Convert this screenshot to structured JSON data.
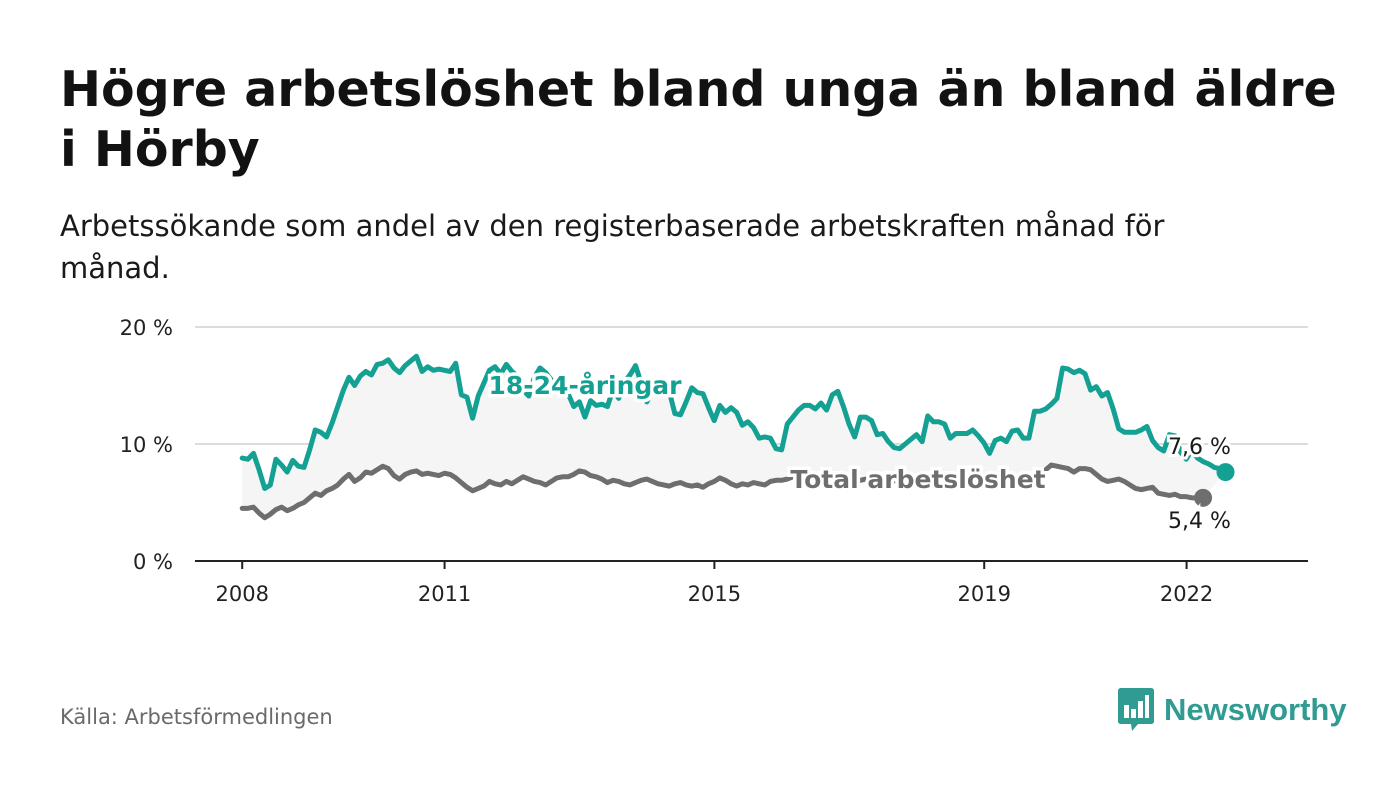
{
  "header": {
    "title": "Högre arbetslöshet bland unga än bland äldre i Hörby",
    "subtitle": "Arbetssökande som andel av den registerbaserade arbetskraften månad för månad."
  },
  "footer": {
    "source": "Källa: Arbetsförmedlingen",
    "brand": "Newsworthy"
  },
  "colors": {
    "youth": "#14a093",
    "total": "#6e6e6e",
    "band": "#f5f5f5",
    "grid": "#dcdcdc",
    "axis": "#222222",
    "brand": "#2f9b91"
  },
  "chart_data": {
    "type": "line",
    "title": "Högre arbetslöshet bland unga än bland äldre i Hörby",
    "xlabel": "",
    "ylabel": "",
    "xlim": [
      2007.3,
      2023.8
    ],
    "ylim": [
      0,
      20
    ],
    "x_ticks": [
      2008,
      2011,
      2015,
      2019,
      2022
    ],
    "y_ticks": [
      0,
      10,
      20
    ],
    "y_tick_labels": [
      "0 %",
      "10 %",
      "20 %"
    ],
    "grid": true,
    "series": [
      {
        "name": "18-24-åringar",
        "label": "18-24-åringar",
        "end_label": "7,6 %",
        "x_start": 2008.0,
        "x_step": 0.0833,
        "values": [
          8.8,
          8.7,
          9.2,
          7.8,
          6.2,
          6.5,
          8.7,
          8.2,
          7.6,
          8.6,
          8.1,
          8.0,
          9.5,
          11.2,
          11.0,
          10.6,
          11.8,
          13.2,
          14.6,
          15.7,
          15.0,
          15.8,
          16.2,
          15.9,
          16.8,
          16.9,
          17.2,
          16.5,
          16.1,
          16.7,
          17.1,
          17.5,
          16.2,
          16.6,
          16.3,
          16.4,
          16.3,
          16.2,
          16.9,
          14.2,
          14.0,
          12.2,
          14.1,
          15.2,
          16.3,
          16.6,
          16.0,
          16.8,
          16.2,
          15.8,
          14.6,
          14.1,
          15.7,
          16.5,
          16.1,
          15.5,
          14.8,
          15.1,
          14.3,
          13.2,
          13.6,
          12.3,
          13.7,
          13.3,
          13.4,
          13.2,
          14.7,
          13.9,
          15.3,
          15.9,
          16.7,
          15.2,
          13.6,
          14.6,
          15.0,
          14.7,
          14.5,
          12.6,
          12.5,
          13.6,
          14.8,
          14.4,
          14.3,
          13.1,
          12.0,
          13.3,
          12.7,
          13.1,
          12.7,
          11.6,
          11.9,
          11.4,
          10.5,
          10.6,
          10.5,
          9.6,
          9.5,
          11.7,
          12.3,
          12.9,
          13.3,
          13.3,
          13.0,
          13.5,
          12.9,
          14.2,
          14.5,
          13.2,
          11.7,
          10.6,
          12.3,
          12.3,
          12.0,
          10.8,
          10.9,
          10.2,
          9.7,
          9.6,
          10.0,
          10.4,
          10.8,
          10.2,
          12.4,
          11.9,
          11.9,
          11.7,
          10.5,
          10.9,
          10.9,
          10.9,
          11.2,
          10.7,
          10.1,
          9.2,
          10.3,
          10.5,
          10.2,
          11.1,
          11.2,
          10.5,
          10.5,
          12.8,
          12.8,
          13.0,
          13.4,
          13.9,
          16.5,
          16.4,
          16.1,
          16.3,
          16.0,
          14.6,
          14.9,
          14.1,
          14.4,
          13.0,
          11.3,
          11.0,
          11.0,
          11.0,
          11.2,
          11.5,
          10.3,
          9.7,
          9.4,
          10.8,
          10.7,
          9.3,
          8.7,
          9.5,
          8.8,
          8.5,
          8.3,
          8.0,
          7.9,
          7.6
        ]
      },
      {
        "name": "Total arbetslöshet",
        "label": "Total arbetslöshet",
        "end_label": "5,4 %",
        "x_start": 2008.0,
        "x_step": 0.0833,
        "values": [
          4.5,
          4.5,
          4.6,
          4.1,
          3.7,
          4.0,
          4.4,
          4.6,
          4.3,
          4.5,
          4.8,
          5.0,
          5.4,
          5.8,
          5.6,
          6.0,
          6.2,
          6.5,
          7.0,
          7.4,
          6.8,
          7.1,
          7.6,
          7.5,
          7.8,
          8.1,
          7.9,
          7.3,
          7.0,
          7.4,
          7.6,
          7.7,
          7.4,
          7.5,
          7.4,
          7.3,
          7.5,
          7.4,
          7.1,
          6.7,
          6.3,
          6.0,
          6.2,
          6.4,
          6.8,
          6.6,
          6.5,
          6.8,
          6.6,
          6.9,
          7.2,
          7.0,
          6.8,
          6.7,
          6.5,
          6.8,
          7.1,
          7.2,
          7.2,
          7.4,
          7.7,
          7.6,
          7.3,
          7.2,
          7.0,
          6.7,
          6.9,
          6.8,
          6.6,
          6.5,
          6.7,
          6.9,
          7.0,
          6.8,
          6.6,
          6.5,
          6.4,
          6.6,
          6.7,
          6.5,
          6.4,
          6.5,
          6.3,
          6.6,
          6.8,
          7.1,
          6.9,
          6.6,
          6.4,
          6.6,
          6.5,
          6.7,
          6.6,
          6.5,
          6.8,
          6.9,
          6.9,
          7.0,
          7.2,
          7.1,
          6.9,
          6.8,
          6.9,
          7.0,
          7.1,
          7.0,
          7.1,
          6.9,
          7.0,
          6.8,
          6.9,
          7.0,
          6.8,
          6.7,
          6.6,
          6.8,
          6.9,
          6.7,
          6.6,
          6.8,
          6.9,
          7.0,
          6.9,
          6.8,
          6.9,
          7.0,
          6.8,
          6.7,
          6.8,
          6.9,
          6.7,
          6.6,
          6.8,
          6.7,
          6.9,
          7.0,
          6.8,
          6.9,
          7.1,
          6.9,
          6.9,
          7.0,
          7.3,
          7.8,
          8.2,
          8.1,
          8.0,
          7.9,
          7.6,
          7.9,
          7.9,
          7.8,
          7.4,
          7.0,
          6.8,
          6.9,
          7.0,
          6.8,
          6.5,
          6.2,
          6.1,
          6.2,
          6.3,
          5.8,
          5.7,
          5.6,
          5.7,
          5.5,
          5.5,
          5.4,
          5.4,
          5.4
        ]
      }
    ]
  }
}
